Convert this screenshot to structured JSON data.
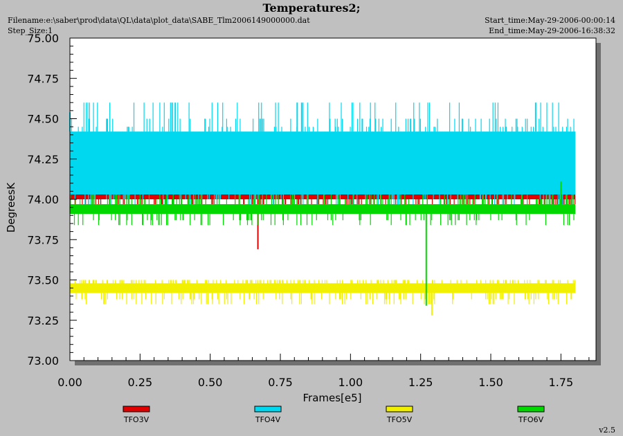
{
  "header": {
    "title": "Temperatures2;",
    "filename": "Filename:e:\\saber\\prod\\data\\QL\\data\\plot_data\\SABE_Tlm2006149000000.dat",
    "step_size": "Step_Size:1",
    "start_time": "Start_time:May-29-2006-00:00:14",
    "end_time": "End_time:May-29-2006-16:38:32",
    "version": "v2.5"
  },
  "chart_data": {
    "type": "line",
    "xlabel": "Frames[e5]",
    "ylabel": "DegreesK",
    "xlim": [
      0,
      1.8
    ],
    "ylim": [
      73.0,
      75.0
    ],
    "x_ticks": [
      "0.00",
      "0.25",
      "0.50",
      "0.75",
      "1.00",
      "1.25",
      "1.50",
      "1.75"
    ],
    "y_ticks": [
      "73.00",
      "73.25",
      "73.50",
      "73.75",
      "74.00",
      "74.25",
      "74.50",
      "74.75",
      "75.00"
    ],
    "legend_position": "bottom",
    "series": [
      {
        "name": "TFO3V",
        "color": "#e00000",
        "x_range": [
          0.0,
          1.8
        ],
        "levels": [
          74.0,
          74.03
        ],
        "spikes_up": [
          74.1,
          74.15
        ],
        "spikes_down": [
          73.97
        ],
        "notable_points": [
          {
            "x": 0.67,
            "y": 73.69
          }
        ]
      },
      {
        "name": "TFO4V",
        "color": "#00d8f0",
        "x_range": [
          0.0,
          1.8
        ],
        "levels": [
          74.03,
          74.42
        ],
        "spikes_up": [
          74.45,
          74.5,
          74.6
        ],
        "spikes_down": [
          73.97,
          74.0
        ],
        "notable_points": [
          {
            "x": 0.0,
            "y": 74.54
          },
          {
            "x": 0.81,
            "y": 74.6
          },
          {
            "x": 1.66,
            "y": 74.6
          }
        ]
      },
      {
        "name": "TFO5V",
        "color": "#f0f000",
        "x_range": [
          0.0,
          1.8
        ],
        "levels": [
          73.42,
          73.48
        ],
        "spikes_up": [
          73.5
        ],
        "spikes_down": [
          73.35,
          73.38
        ],
        "notable_points": [
          {
            "x": 1.29,
            "y": 73.28
          }
        ]
      },
      {
        "name": "TFO6V",
        "color": "#00d800",
        "x_range": [
          0.0,
          1.8
        ],
        "levels": [
          73.91,
          73.97
        ],
        "spikes_up": [
          74.0,
          74.03
        ],
        "spikes_down": [
          73.84,
          73.87
        ],
        "notable_points": [
          {
            "x": 1.27,
            "y": 73.34
          },
          {
            "x": 1.75,
            "y": 74.11
          }
        ]
      }
    ]
  }
}
